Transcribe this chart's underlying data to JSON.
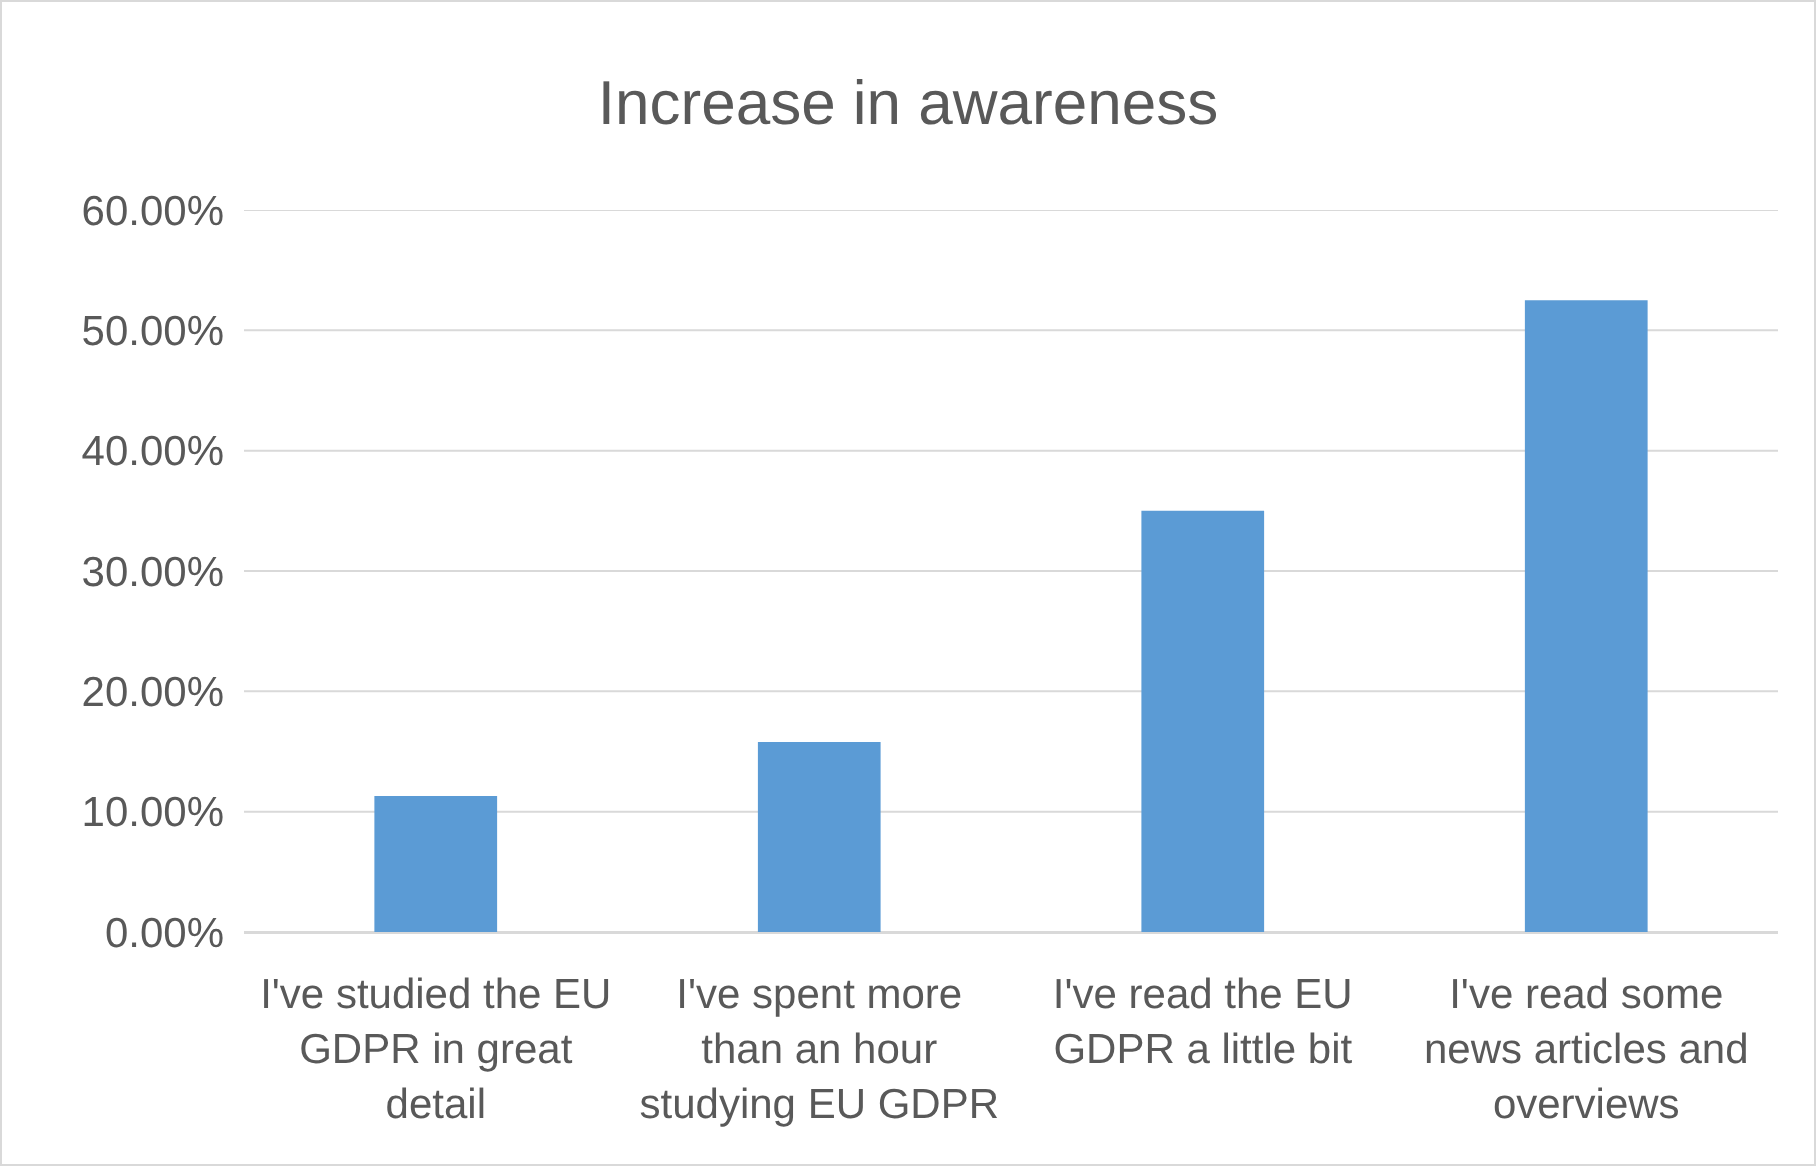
{
  "chart_data": {
    "type": "bar",
    "title": "Increase in awareness",
    "categories": [
      "I've studied the EU GDPR in great detail",
      "I've spent more than an hour studying EU GDPR",
      "I've read the EU GDPR a little bit",
      "I've read some news articles and overviews"
    ],
    "values": [
      11.3,
      15.8,
      35.0,
      52.5
    ],
    "color": "#5b9bd5",
    "ylim": [
      0,
      60
    ],
    "yticks": [
      {
        "value": 0,
        "label": "0.00%"
      },
      {
        "value": 10,
        "label": "10.00%"
      },
      {
        "value": 20,
        "label": "20.00%"
      },
      {
        "value": 30,
        "label": "30.00%"
      },
      {
        "value": 40,
        "label": "40.00%"
      },
      {
        "value": 50,
        "label": "50.00%"
      },
      {
        "value": 60,
        "label": "60.00%"
      }
    ],
    "grid": "y"
  }
}
